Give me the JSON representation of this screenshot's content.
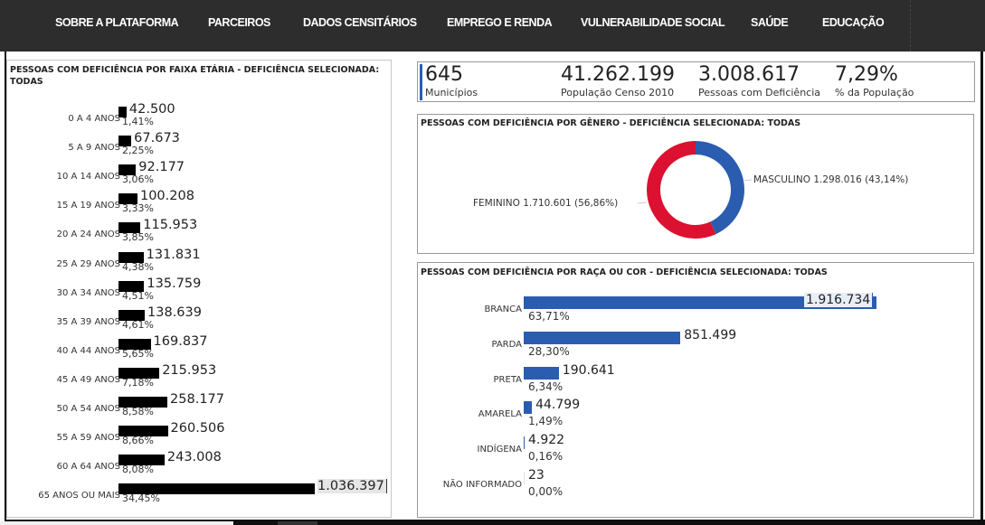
{
  "nav": {
    "items": [
      {
        "label": "SOBRE A PLATAFORMA"
      },
      {
        "label": "PARCEIROS"
      },
      {
        "label": "DADOS CENSITÁRIOS"
      },
      {
        "label": "EMPREGO E RENDA"
      },
      {
        "label": "VULNERABILIDADE SOCIAL"
      },
      {
        "label": "SAÚDE"
      },
      {
        "label": "EDUCAÇÃO"
      }
    ]
  },
  "kpis": [
    {
      "value": "645",
      "label": "Municípios"
    },
    {
      "value": "41.262.199",
      "label": "População Censo 2010"
    },
    {
      "value": "3.008.617",
      "label": "Pessoas com Deficiência"
    },
    {
      "value": "7,29%",
      "label": "% da População"
    }
  ],
  "colors": {
    "accent": "#2a5db0",
    "feminino": "#dc1030",
    "masculino": "#2a5db0",
    "age_bar": "#000000"
  },
  "chart_data": [
    {
      "type": "bar",
      "orientation": "horizontal",
      "title": "PESSOAS COM DEFICIÊNCIA POR FAIXA ETÁRIA - DEFICIÊNCIA SELECIONADA: TODAS",
      "categories": [
        "0 A 4 ANOS",
        "5 A 9 ANOS",
        "10 A 14 ANOS",
        "15 A 19 ANOS",
        "20 A 24 ANOS",
        "25 A 29 ANOS",
        "30 A 34 ANOS",
        "35 A 39 ANOS",
        "40 A 44 ANOS",
        "45 A 49 ANOS",
        "50 A 54 ANOS",
        "55 A 59 ANOS",
        "60 A 64 ANOS",
        "65 ANOS OU MAIS"
      ],
      "values": [
        42500,
        67673,
        92177,
        100208,
        115953,
        131831,
        135759,
        138639,
        169837,
        215953,
        258177,
        260506,
        243008,
        1036397
      ],
      "value_labels": [
        "42.500",
        "67.673",
        "92.177",
        "100.208",
        "115.953",
        "131.831",
        "135.759",
        "138.639",
        "169.837",
        "215.953",
        "258.177",
        "260.506",
        "243.008",
        "1.036.397"
      ],
      "percent_labels": [
        "1,41%",
        "2,25%",
        "3,06%",
        "3,33%",
        "3,85%",
        "4,38%",
        "4,51%",
        "4,61%",
        "5,65%",
        "7,18%",
        "8,58%",
        "8,66%",
        "8,08%",
        "34,45%"
      ]
    },
    {
      "type": "pie",
      "donut": true,
      "title": "PESSOAS COM DEFICIÊNCIA POR GÊNERO - DEFICIÊNCIA SELECIONADA: TODAS",
      "categories": [
        "MASCULINO",
        "FEMININO"
      ],
      "values": [
        1298016,
        1710601
      ],
      "labels": [
        "MASCULINO 1.298.016 (43,14%)",
        "FEMININO 1.710.601 (56,86%)"
      ],
      "percents": [
        43.14,
        56.86
      ]
    },
    {
      "type": "bar",
      "orientation": "horizontal",
      "title": "PESSOAS COM DEFICIÊNCIA POR RAÇA OU COR - DEFICIÊNCIA SELECIONADA: TODAS",
      "categories": [
        "BRANCA",
        "PARDA",
        "PRETA",
        "AMARELA",
        "INDÍGENA",
        "NÃO INFORMADO"
      ],
      "values": [
        1916734,
        851499,
        190641,
        44799,
        4922,
        23
      ],
      "value_labels": [
        "1.916.734",
        "851.499",
        "190.641",
        "44.799",
        "4.922",
        "23"
      ],
      "percent_labels": [
        "63,71%",
        "28,30%",
        "6,34%",
        "1,49%",
        "0,16%",
        "0,00%"
      ]
    }
  ]
}
